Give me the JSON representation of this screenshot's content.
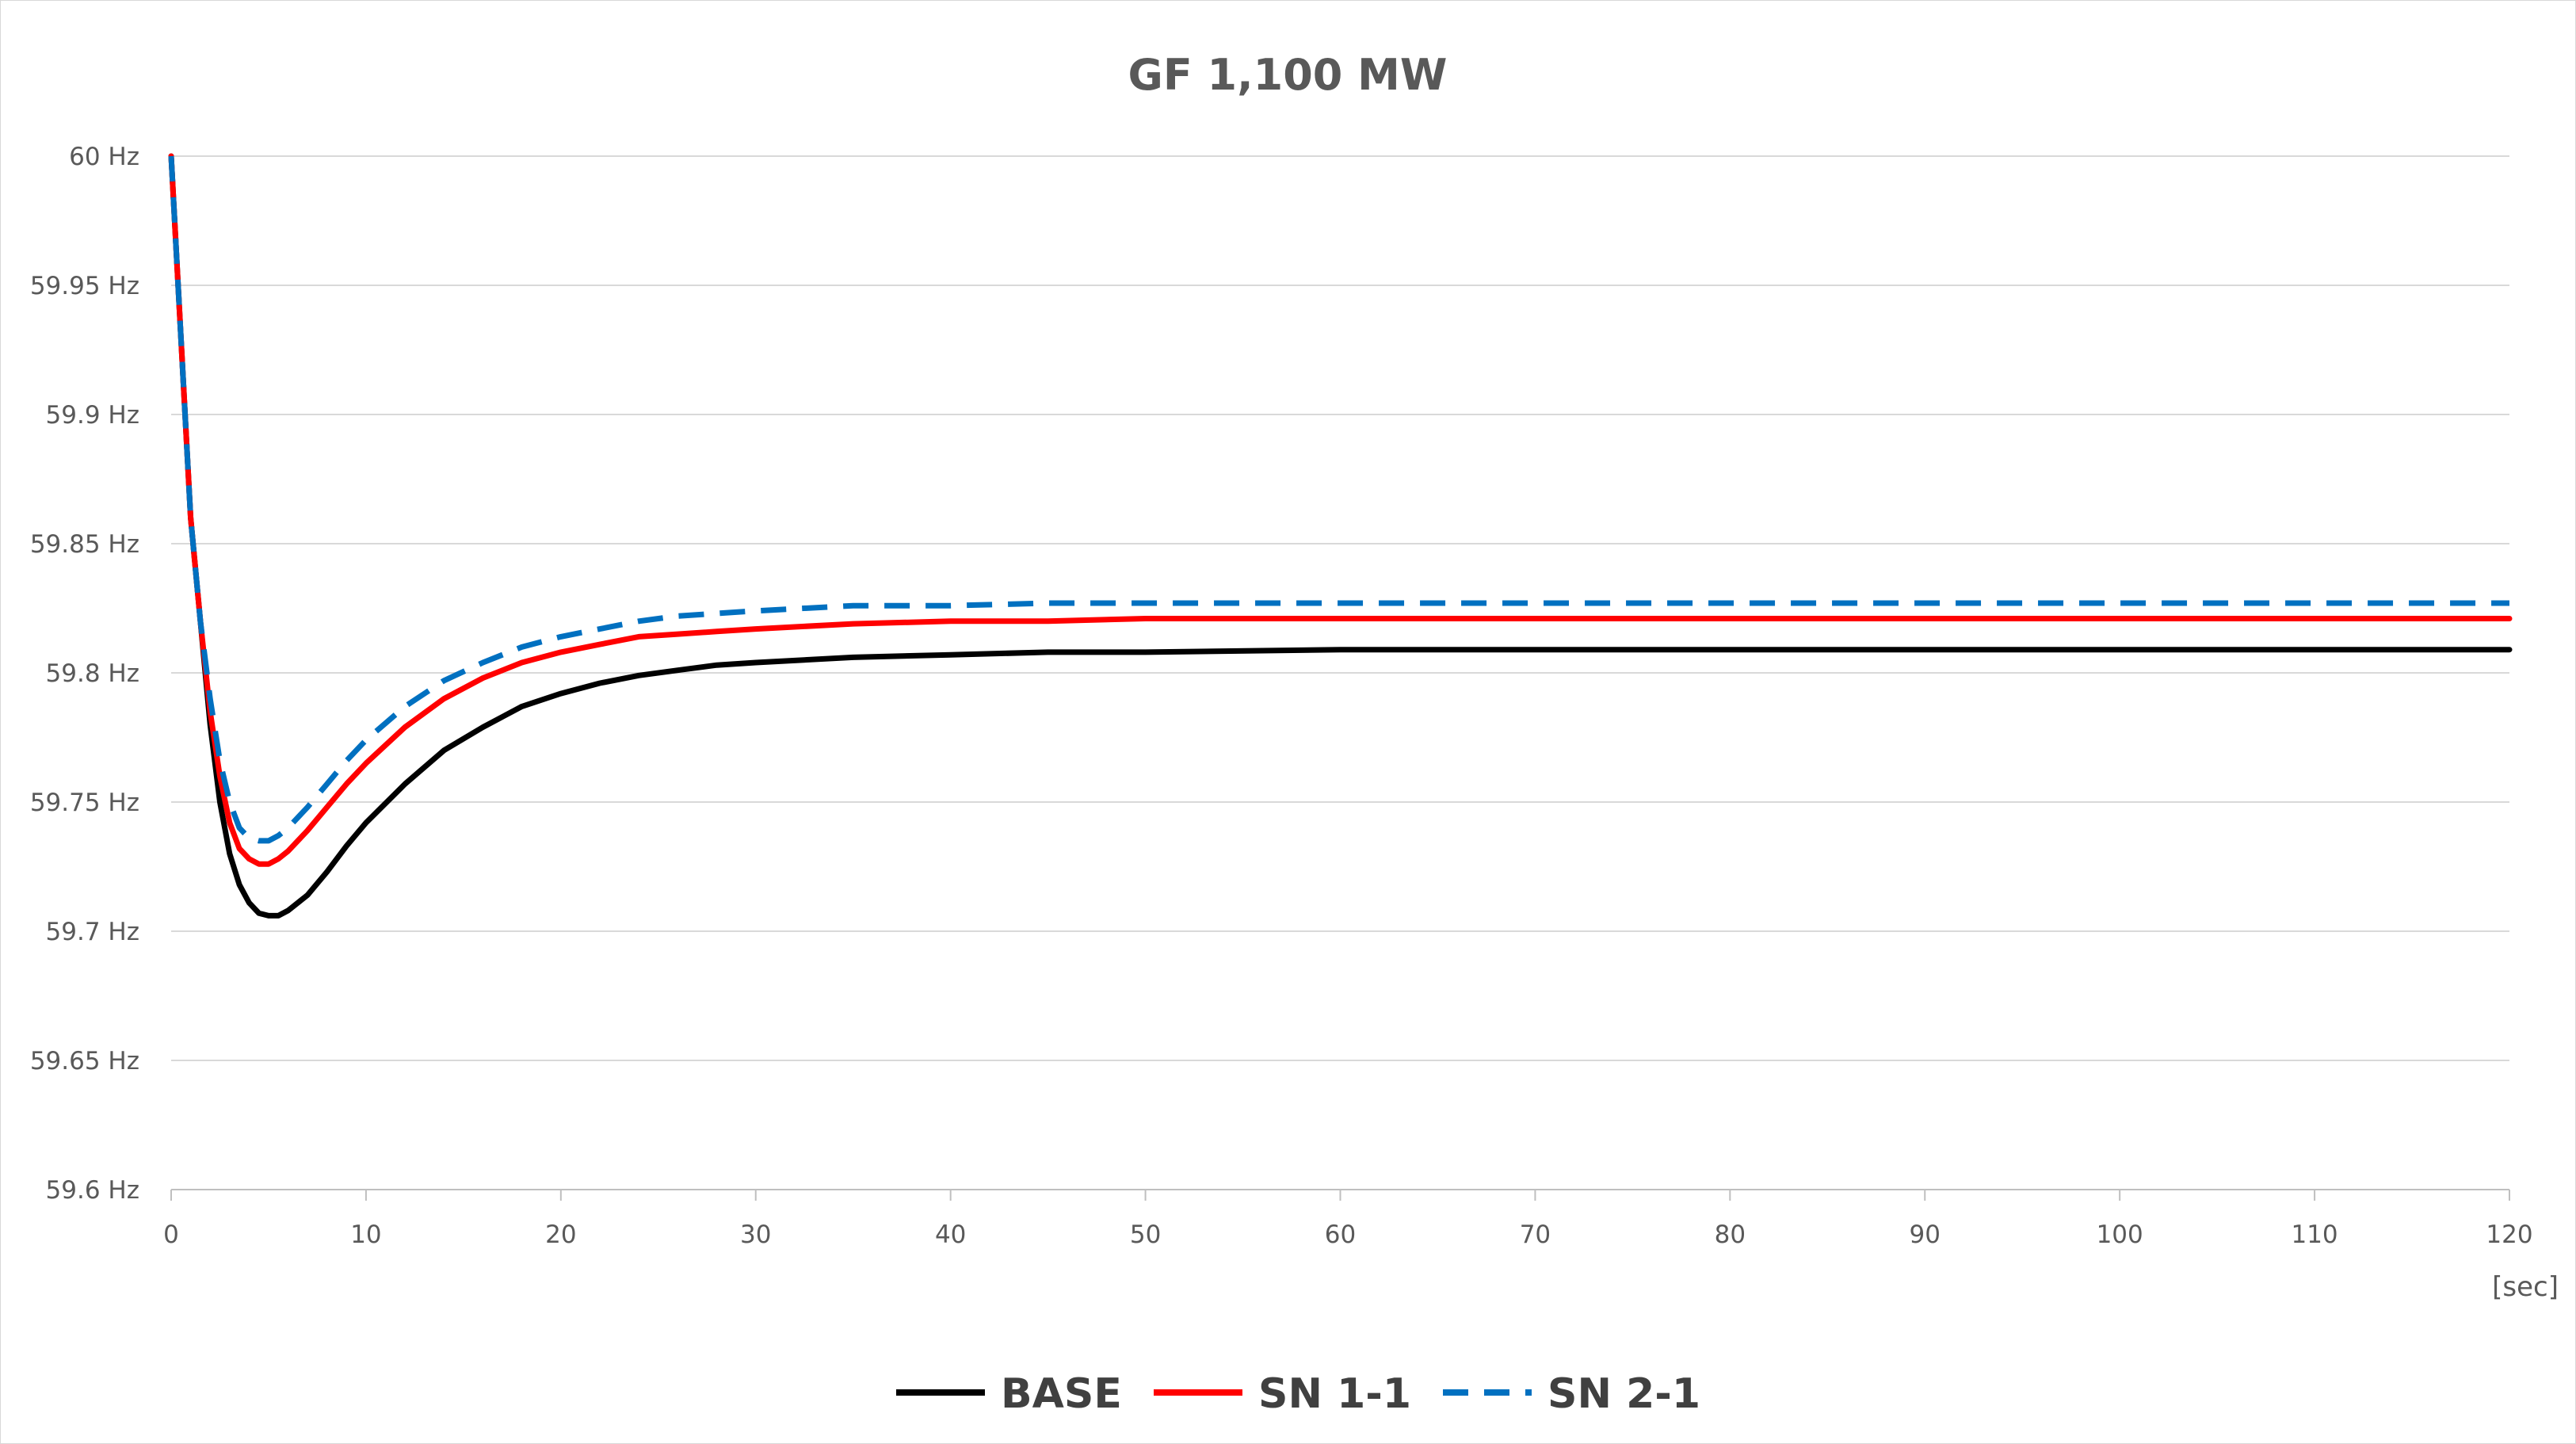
{
  "chart_data": {
    "type": "line",
    "title": "GF 1,100 MW",
    "xlabel": "[sec]",
    "ylabel": "",
    "xlim": [
      0,
      120
    ],
    "ylim": [
      59.6,
      60
    ],
    "x_ticks": [
      0,
      10,
      20,
      30,
      40,
      50,
      60,
      70,
      80,
      90,
      100,
      110,
      120
    ],
    "x_tick_labels": [
      "0",
      "10",
      "20",
      "30",
      "40",
      "50",
      "60",
      "70",
      "80",
      "90",
      "100",
      "110",
      "120"
    ],
    "y_ticks": [
      59.6,
      59.65,
      59.7,
      59.75,
      59.8,
      59.85,
      59.9,
      59.95,
      60
    ],
    "y_tick_labels": [
      "59.6 Hz",
      "59.65 Hz",
      "59.7 Hz",
      "59.75 Hz",
      "59.8 Hz",
      "59.85 Hz",
      "59.9 Hz",
      "59.95 Hz",
      "60 Hz"
    ],
    "grid": true,
    "legend_position": "bottom",
    "series": [
      {
        "name": "BASE",
        "color": "#000000",
        "dash": "solid",
        "x": [
          0,
          0.5,
          1,
          1.5,
          2,
          2.5,
          3,
          3.5,
          4,
          4.5,
          5,
          5.5,
          6,
          7,
          8,
          9,
          10,
          12,
          14,
          16,
          18,
          20,
          22,
          24,
          26,
          28,
          30,
          35,
          40,
          45,
          50,
          60,
          70,
          80,
          90,
          100,
          110,
          120
        ],
        "y": [
          60.0,
          59.93,
          59.86,
          59.82,
          59.78,
          59.75,
          59.73,
          59.718,
          59.711,
          59.707,
          59.706,
          59.706,
          59.708,
          59.714,
          59.723,
          59.733,
          59.742,
          59.757,
          59.77,
          59.779,
          59.787,
          59.792,
          59.796,
          59.799,
          59.801,
          59.803,
          59.804,
          59.806,
          59.807,
          59.808,
          59.808,
          59.809,
          59.809,
          59.809,
          59.809,
          59.809,
          59.809,
          59.809
        ]
      },
      {
        "name": "SN 1-1",
        "color": "#ff0000",
        "dash": "solid",
        "x": [
          0,
          0.5,
          1,
          1.5,
          2,
          2.5,
          3,
          3.5,
          4,
          4.5,
          5,
          5.5,
          6,
          7,
          8,
          9,
          10,
          12,
          14,
          16,
          18,
          20,
          22,
          24,
          26,
          28,
          30,
          35,
          40,
          45,
          50,
          60,
          70,
          80,
          90,
          100,
          110,
          120
        ],
        "y": [
          60.0,
          59.93,
          59.86,
          59.82,
          59.785,
          59.76,
          59.742,
          59.732,
          59.728,
          59.726,
          59.726,
          59.728,
          59.731,
          59.739,
          59.748,
          59.757,
          59.765,
          59.779,
          59.79,
          59.798,
          59.804,
          59.808,
          59.811,
          59.814,
          59.815,
          59.816,
          59.817,
          59.819,
          59.82,
          59.82,
          59.821,
          59.821,
          59.821,
          59.821,
          59.821,
          59.821,
          59.821,
          59.821
        ]
      },
      {
        "name": "SN 2-1",
        "color": "#0070c0",
        "dash": "dashed",
        "x": [
          0,
          0.5,
          1,
          1.5,
          2,
          2.5,
          3,
          3.5,
          4,
          4.5,
          5,
          5.5,
          6,
          7,
          8,
          9,
          10,
          12,
          14,
          16,
          18,
          20,
          22,
          24,
          26,
          28,
          30,
          35,
          40,
          45,
          50,
          60,
          70,
          80,
          90,
          100,
          110,
          120
        ],
        "y": [
          60.0,
          59.93,
          59.86,
          59.82,
          59.79,
          59.766,
          59.75,
          59.74,
          59.736,
          59.735,
          59.735,
          59.737,
          59.74,
          59.748,
          59.757,
          59.766,
          59.774,
          59.787,
          59.797,
          59.804,
          59.81,
          59.814,
          59.817,
          59.82,
          59.822,
          59.823,
          59.824,
          59.826,
          59.826,
          59.827,
          59.827,
          59.827,
          59.827,
          59.827,
          59.827,
          59.827,
          59.827,
          59.827
        ]
      }
    ]
  }
}
